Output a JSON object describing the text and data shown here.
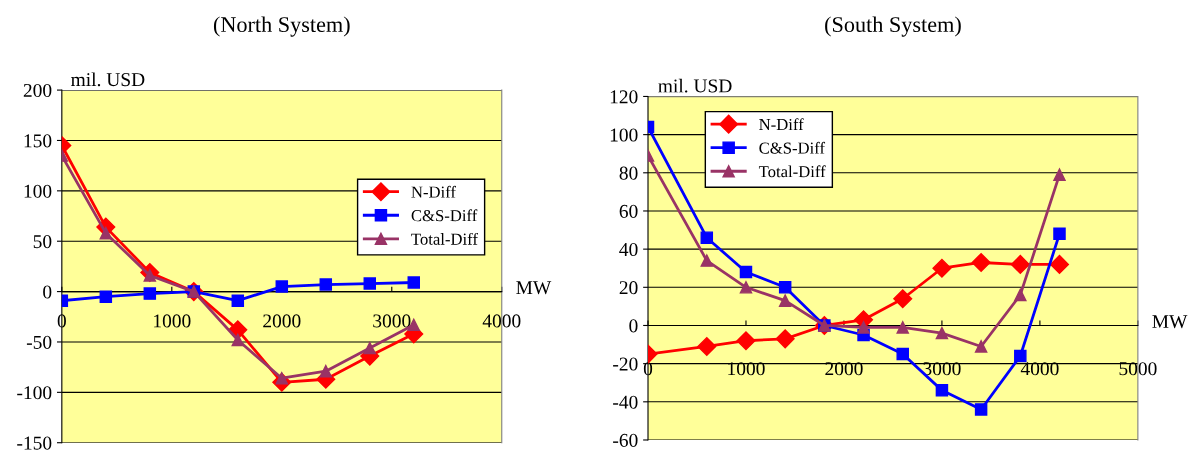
{
  "chart_data": [
    {
      "type": "line",
      "title": "(North System)",
      "ylabel": "mil. USD",
      "xlabel": "MW",
      "x": [
        0,
        400,
        800,
        1200,
        1600,
        2000,
        2400,
        2800,
        3200
      ],
      "series": [
        {
          "name": "N-Diff",
          "color": "#ff0000",
          "marker": "diamond",
          "values": [
            145,
            64,
            19,
            0,
            -38,
            -90,
            -87,
            -64,
            -42
          ]
        },
        {
          "name": "C&S-Diff",
          "color": "#0000ff",
          "marker": "square",
          "values": [
            -9,
            -5,
            -2,
            0,
            -9,
            5,
            7,
            8,
            9
          ]
        },
        {
          "name": "Total-Diff",
          "color": "#993366",
          "marker": "triangle",
          "values": [
            135,
            58,
            16,
            0,
            -48,
            -86,
            -79,
            -56,
            -33
          ]
        }
      ],
      "xlim": [
        0,
        4000
      ],
      "xticks": [
        0,
        1000,
        2000,
        3000,
        4000
      ],
      "ylim": [
        -150,
        200
      ],
      "yticks": [
        -150,
        -100,
        -50,
        0,
        50,
        100,
        150,
        200
      ],
      "grid": "y",
      "legend": "right"
    },
    {
      "type": "line",
      "title": "(South System)",
      "ylabel": "mil. USD",
      "xlabel": "MW",
      "x": [
        0,
        600,
        1000,
        1400,
        1800,
        2200,
        2600,
        3000,
        3400,
        3800,
        4200
      ],
      "series": [
        {
          "name": "N-Diff",
          "color": "#ff0000",
          "marker": "diamond",
          "values": [
            -15,
            -11,
            -8,
            -7,
            0,
            3,
            14,
            30,
            33,
            32,
            32
          ]
        },
        {
          "name": "C&S-Diff",
          "color": "#0000ff",
          "marker": "square",
          "values": [
            104,
            46,
            28,
            20,
            0,
            -5,
            -15,
            -34,
            -44,
            -16,
            48
          ]
        },
        {
          "name": "Total-Diff",
          "color": "#993366",
          "marker": "triangle",
          "values": [
            89,
            34,
            20,
            13,
            0,
            -1,
            -1,
            -4,
            -11,
            16,
            79
          ]
        }
      ],
      "xlim": [
        0,
        5000
      ],
      "xticks": [
        0,
        1000,
        2000,
        3000,
        4000,
        5000
      ],
      "ylim": [
        -60,
        120
      ],
      "yticks": [
        -60,
        -40,
        -20,
        0,
        20,
        40,
        60,
        80,
        100,
        120
      ],
      "grid": "y",
      "legend": "top left"
    }
  ]
}
